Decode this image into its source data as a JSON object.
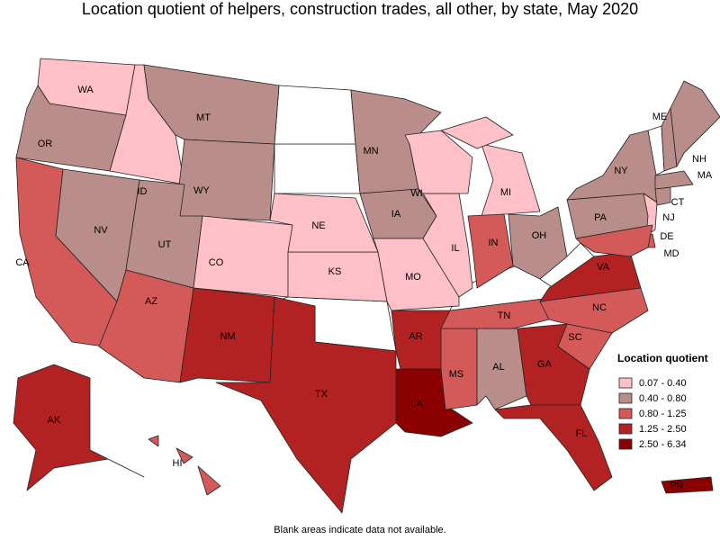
{
  "title": "Location quotient of helpers, construction trades, all other, by state, May 2020",
  "legend": {
    "title": "Location quotient",
    "items": [
      {
        "label": "0.07 - 0.40",
        "color": "#ffc0c8"
      },
      {
        "label": "0.40 - 0.80",
        "color": "#b98e8a"
      },
      {
        "label": "0.80 - 1.25",
        "color": "#d45a5a"
      },
      {
        "label": "1.25 - 2.50",
        "color": "#b22222"
      },
      {
        "label": "2.50 - 6.34",
        "color": "#8b0000"
      }
    ]
  },
  "states": [
    {
      "label": "WA",
      "range": "0.07 - 0.40"
    },
    {
      "label": "OR",
      "range": "0.40 - 0.80"
    },
    {
      "label": "CA",
      "range": "0.80 - 1.25"
    },
    {
      "label": "NV",
      "range": "0.40 - 0.80"
    },
    {
      "label": "ID",
      "range": "0.07 - 0.40"
    },
    {
      "label": "MT",
      "range": "0.40 - 0.80"
    },
    {
      "label": "WY",
      "range": "0.40 - 0.80"
    },
    {
      "label": "UT",
      "range": "0.40 - 0.80"
    },
    {
      "label": "CO",
      "range": "0.07 - 0.40"
    },
    {
      "label": "AZ",
      "range": "0.80 - 1.25"
    },
    {
      "label": "NM",
      "range": "1.25 - 2.50"
    },
    {
      "label": "TX",
      "range": "1.25 - 2.50"
    },
    {
      "label": "KS",
      "range": "0.07 - 0.40"
    },
    {
      "label": "NE",
      "range": "0.07 - 0.40"
    },
    {
      "label": "MN",
      "range": "0.40 - 0.80"
    },
    {
      "label": "IA",
      "range": "0.40 - 0.80"
    },
    {
      "label": "MO",
      "range": "0.07 - 0.40"
    },
    {
      "label": "AR",
      "range": "1.25 - 2.50"
    },
    {
      "label": "LA",
      "range": "2.50 - 6.34"
    },
    {
      "label": "MS",
      "range": "0.80 - 1.25"
    },
    {
      "label": "AL",
      "range": "0.40 - 0.80"
    },
    {
      "label": "TN",
      "range": "0.80 - 1.25"
    },
    {
      "label": "IL",
      "range": "0.07 - 0.40"
    },
    {
      "label": "WI",
      "range": "0.07 - 0.40"
    },
    {
      "label": "MI",
      "range": "0.07 - 0.40"
    },
    {
      "label": "IN",
      "range": "0.80 - 1.25"
    },
    {
      "label": "OH",
      "range": "0.40 - 0.80"
    },
    {
      "label": "VA",
      "range": "1.25 - 2.50"
    },
    {
      "label": "NC",
      "range": "0.80 - 1.25"
    },
    {
      "label": "SC",
      "range": "0.80 - 1.25"
    },
    {
      "label": "GA",
      "range": "1.25 - 2.50"
    },
    {
      "label": "FL",
      "range": "1.25 - 2.50"
    },
    {
      "label": "PA",
      "range": "0.40 - 0.80"
    },
    {
      "label": "NY",
      "range": "0.40 - 0.80"
    },
    {
      "label": "NJ",
      "range": "0.07 - 0.40"
    },
    {
      "label": "DE",
      "range": "0.80 - 1.25"
    },
    {
      "label": "MD",
      "range": "0.80 - 1.25"
    },
    {
      "label": "CT",
      "range": "0.40 - 0.80"
    },
    {
      "label": "MA",
      "range": "0.40 - 0.80"
    },
    {
      "label": "NH",
      "range": "0.40 - 0.80"
    },
    {
      "label": "ME",
      "range": "0.40 - 0.80"
    },
    {
      "label": "AK",
      "range": "1.25 - 2.50"
    },
    {
      "label": "HI",
      "range": "0.80 - 1.25"
    },
    {
      "label": "PR",
      "range": "2.50 - 6.34"
    }
  ],
  "note": "Blank areas indicate data not available."
}
